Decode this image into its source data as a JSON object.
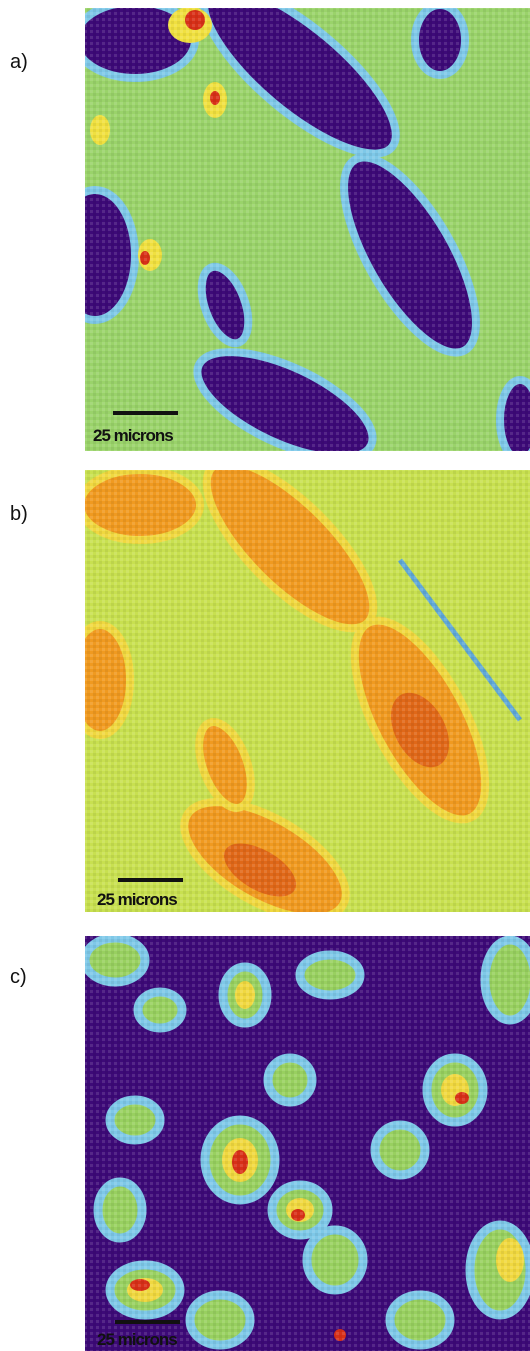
{
  "panels": [
    {
      "label": "a)",
      "scale_bar": "25 microns"
    },
    {
      "label": "b)",
      "scale_bar": "25 microns"
    },
    {
      "label": "c)",
      "scale_bar": "25 microns"
    }
  ]
}
